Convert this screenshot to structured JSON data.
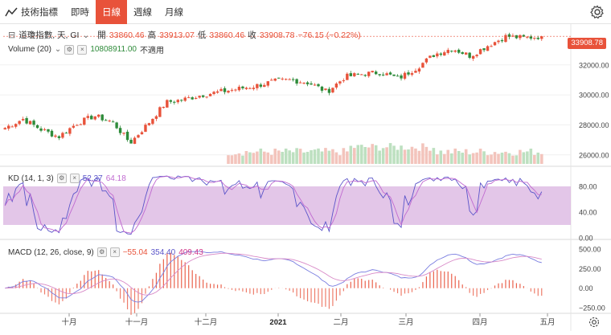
{
  "toolbar": {
    "symbol_tab_label": "技術指標",
    "tabs": [
      "即時",
      "日線",
      "週線",
      "月線"
    ],
    "active_tab": "日線"
  },
  "main": {
    "title": "道瓊指數, 天, GI",
    "open_label": "開",
    "open": "33860.46",
    "high_label": "高",
    "high": "33913.07",
    "low_label": "低",
    "low": "33860.46",
    "close_label": "收",
    "close": "33908.78",
    "change": "−76.15 (−0.22%)",
    "last_price_badge": "33908.78",
    "volume_label": "Volume (20)",
    "volume_value": "10808911.00",
    "volume_ma_value": "不適用",
    "y_ticks": [
      "32000.00",
      "30000.00",
      "28000.00",
      "26000.00"
    ]
  },
  "kd": {
    "label": "KD (14, 1, 3)",
    "k_value": "52.37",
    "d_value": "64.18",
    "y_ticks": [
      "80.00",
      "40.00",
      "0.00"
    ]
  },
  "macd": {
    "label": "MACD (12, 26, close, 9)",
    "hist_value": "−55.04",
    "macd_value": "354.40",
    "signal_value": "409.43",
    "y_ticks": [
      "500.00",
      "250.00",
      "0.00",
      "−250.00"
    ]
  },
  "x_axis": [
    "十月",
    "十一月",
    "十二月",
    "2021",
    "二月",
    "三月",
    "四月",
    "五月"
  ],
  "colors": {
    "up": "#e8523a",
    "down": "#2e8b3a",
    "kd_band": "#d9b3e0",
    "k_line": "#5b55c9",
    "d_line": "#c06ad0",
    "macd_line": "#7a7ee0",
    "signal_line": "#d889c7",
    "accent": "#e8523a"
  },
  "chart_data": {
    "type": "candlestick",
    "series_close_approx": [
      27800,
      28400,
      27700,
      27200,
      28100,
      28600,
      28200,
      26800,
      28100,
      29500,
      29700,
      30000,
      30200,
      30400,
      30600,
      30900,
      31000,
      30800,
      30200,
      31200,
      31400,
      31500,
      31100,
      31800,
      32700,
      33100,
      32600,
      33300,
      33900,
      33800,
      33909
    ],
    "price_ylim": [
      25400,
      34400
    ],
    "kd_ylim": [
      0,
      100
    ],
    "macd_ylim": [
      -300,
      520
    ]
  }
}
